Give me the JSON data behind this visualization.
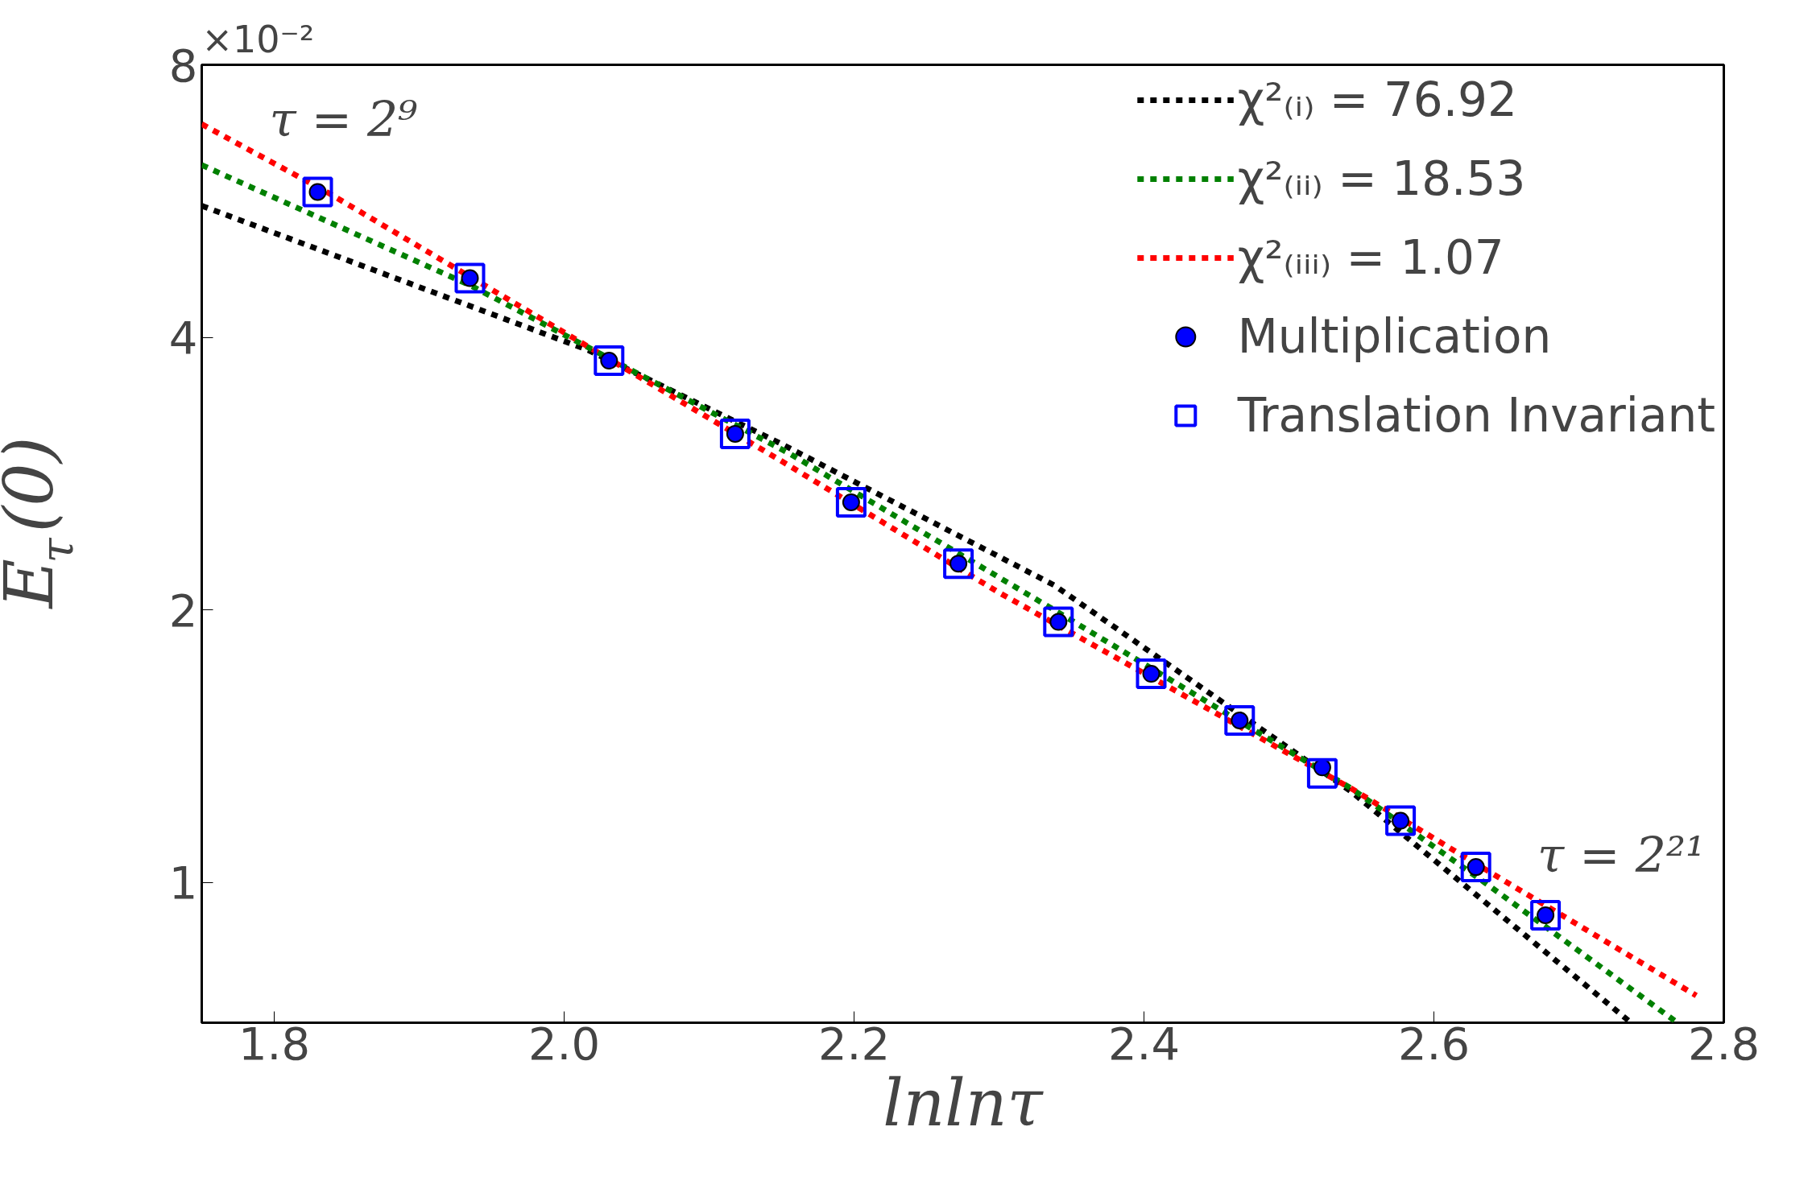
{
  "chart_data": {
    "type": "scatter",
    "xlabel": "lnlnτ",
    "ylabel": "E$_{τ}$(0)",
    "xlim": [
      1.75,
      2.8
    ],
    "xticks": [
      {
        "value": 1.8,
        "label": "1.8"
      },
      {
        "value": 2.0,
        "label": "2.0"
      },
      {
        "value": 2.2,
        "label": "2.2"
      },
      {
        "value": 2.4,
        "label": "2.4"
      },
      {
        "value": 2.6,
        "label": "2.6"
      },
      {
        "value": 2.8,
        "label": "2.8"
      }
    ],
    "ylim": [
      0.7,
      8
    ],
    "yticks": [
      1,
      2,
      4,
      8
    ],
    "log": "y",
    "grid": false,
    "legend": "top right",
    "series": [
      {
        "name": "χ²₍ᵢ₎ = 76.92",
        "type": "line",
        "line_style": "dotted",
        "marker": "none",
        "color": "#000000",
        "x": [
          1.75,
          2.017,
          2.15,
          2.338,
          2.543,
          2.736
        ],
        "values": [
          5.59,
          3.87,
          3.05,
          2.13,
          1.26,
          0.7
        ]
      },
      {
        "name": "χ²₍ᵢᵢ₎ = 18.53",
        "type": "line",
        "line_style": "dotted",
        "marker": "none",
        "color": "#008000",
        "x": [
          1.75,
          1.936,
          2.155,
          2.338,
          2.543,
          2.635,
          2.768
        ],
        "values": [
          6.2,
          4.56,
          2.98,
          2.0,
          1.27,
          1.0,
          0.7
        ]
      },
      {
        "name": "χ²₍ᵢᵢᵢ₎ = 1.07",
        "type": "line",
        "line_style": "dotted",
        "marker": "none",
        "color": "#ff0000",
        "x": [
          1.75,
          1.837,
          2.15,
          2.3,
          2.543,
          2.646,
          2.781
        ],
        "values": [
          6.88,
          5.78,
          2.92,
          2.09,
          1.27,
          1.01,
          0.75
        ]
      },
      {
        "name": "Multiplication",
        "marker": "circle",
        "color": "#0000ff",
        "x": [
          1.83,
          1.935,
          2.031,
          2.118,
          2.198,
          2.272,
          2.341,
          2.405,
          2.466,
          2.523,
          2.577,
          2.629,
          2.677
        ],
        "values": [
          5.79,
          4.65,
          3.77,
          3.13,
          2.63,
          2.25,
          1.94,
          1.7,
          1.51,
          1.34,
          1.17,
          1.04,
          0.92
        ]
      },
      {
        "name": "Translation Invariant",
        "marker": "square",
        "color": "#0000ff",
        "x": [
          1.83,
          1.935,
          2.031,
          2.118,
          2.198,
          2.272,
          2.341,
          2.405,
          2.466,
          2.523,
          2.577,
          2.629,
          2.677
        ],
        "values": [
          5.79,
          4.65,
          3.77,
          3.13,
          2.63,
          2.25,
          1.94,
          1.7,
          1.51,
          1.32,
          1.17,
          1.04,
          0.92
        ]
      }
    ],
    "annotations": [
      "×10⁻²",
      {
        "text": "τ = 2⁹",
        "x": 1.83,
        "y": 5.79
      },
      {
        "text": "τ = 2²¹",
        "x": 2.677,
        "y": 0.92
      }
    ]
  }
}
